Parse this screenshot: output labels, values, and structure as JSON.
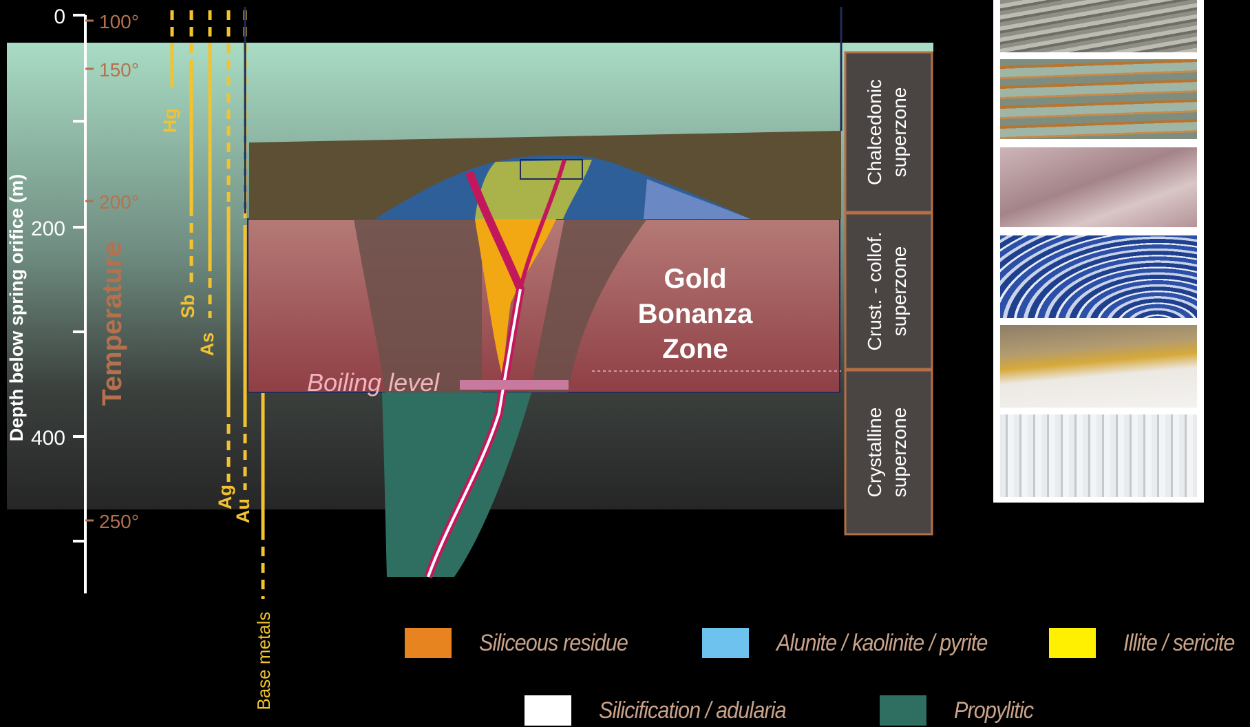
{
  "depth_axis": {
    "label": "Depth below spring orifice (m)",
    "ticks": [
      "0",
      "200",
      "400"
    ]
  },
  "temperature_axis": {
    "label": "Temperature",
    "ticks": [
      "100°",
      "150°",
      "200°",
      "250°"
    ]
  },
  "elements": [
    "Hg",
    "Sb",
    "As",
    "Ag",
    "Au",
    "Base metals"
  ],
  "boiling_label": "Boiling level",
  "gold_zone": {
    "line1": "Gold",
    "line2": "Bonanza",
    "line3": "Zone"
  },
  "superzones": [
    {
      "line1": "Chalcedonic",
      "line2": "superzone"
    },
    {
      "line1": "Crust. - collof.",
      "line2": "superzone"
    },
    {
      "line1": "Crystalline",
      "line2": "superzone"
    }
  ],
  "legend": [
    {
      "label": "Siliceous residue",
      "color": "#e8841f"
    },
    {
      "label": "Alunite / kaolinite / pyrite",
      "color": "#6ec3ee"
    },
    {
      "label": "Illite / sericite",
      "color": "#ffef00"
    },
    {
      "label": "Silicification / adularia",
      "color": "#ffffff"
    },
    {
      "label": "Propylitic",
      "color": "#2f6f62"
    }
  ],
  "photos": [
    {
      "name": "chalcedonic-layered-photo"
    },
    {
      "name": "banded-chalcedony-photo"
    },
    {
      "name": "pink-silica-photo"
    },
    {
      "name": "blue-banded-vein-photo"
    },
    {
      "name": "gold-bearing-vein-photo"
    },
    {
      "name": "crystalline-quartz-photo"
    }
  ],
  "colors": {
    "temperature": "#b5714e",
    "element_lines": "#f2c230",
    "zone_box": "#a0575a",
    "cap_layer": "#5c4f34",
    "superzone_box": "#4a4443",
    "superzone_border": "#b56f45"
  }
}
